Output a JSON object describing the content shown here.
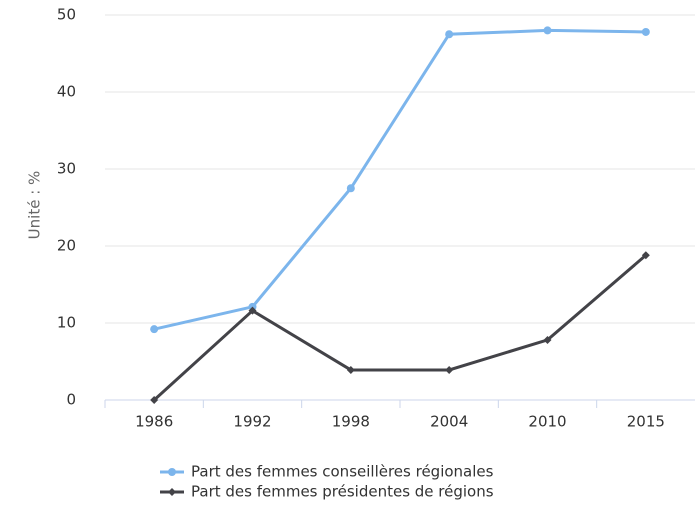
{
  "chart_data": {
    "type": "line",
    "y_label": "Unité : %",
    "categories": [
      "1986",
      "1992",
      "1998",
      "2004",
      "2010",
      "2015"
    ],
    "series": [
      {
        "name": "Part des femmes conseillères régionales",
        "color": "#7cb5ec",
        "marker": "circle",
        "values": [
          9.2,
          12.1,
          27.5,
          47.5,
          48.0,
          47.8
        ]
      },
      {
        "name": "Part des femmes présidentes de régions",
        "color": "#434348",
        "marker": "diamond",
        "values": [
          0,
          11.6,
          3.9,
          3.9,
          7.8,
          18.8
        ]
      }
    ],
    "ylim": [
      0,
      50
    ],
    "yticks": [
      0,
      10,
      20,
      30,
      40,
      50
    ],
    "grid": true,
    "legend": "bottom"
  }
}
